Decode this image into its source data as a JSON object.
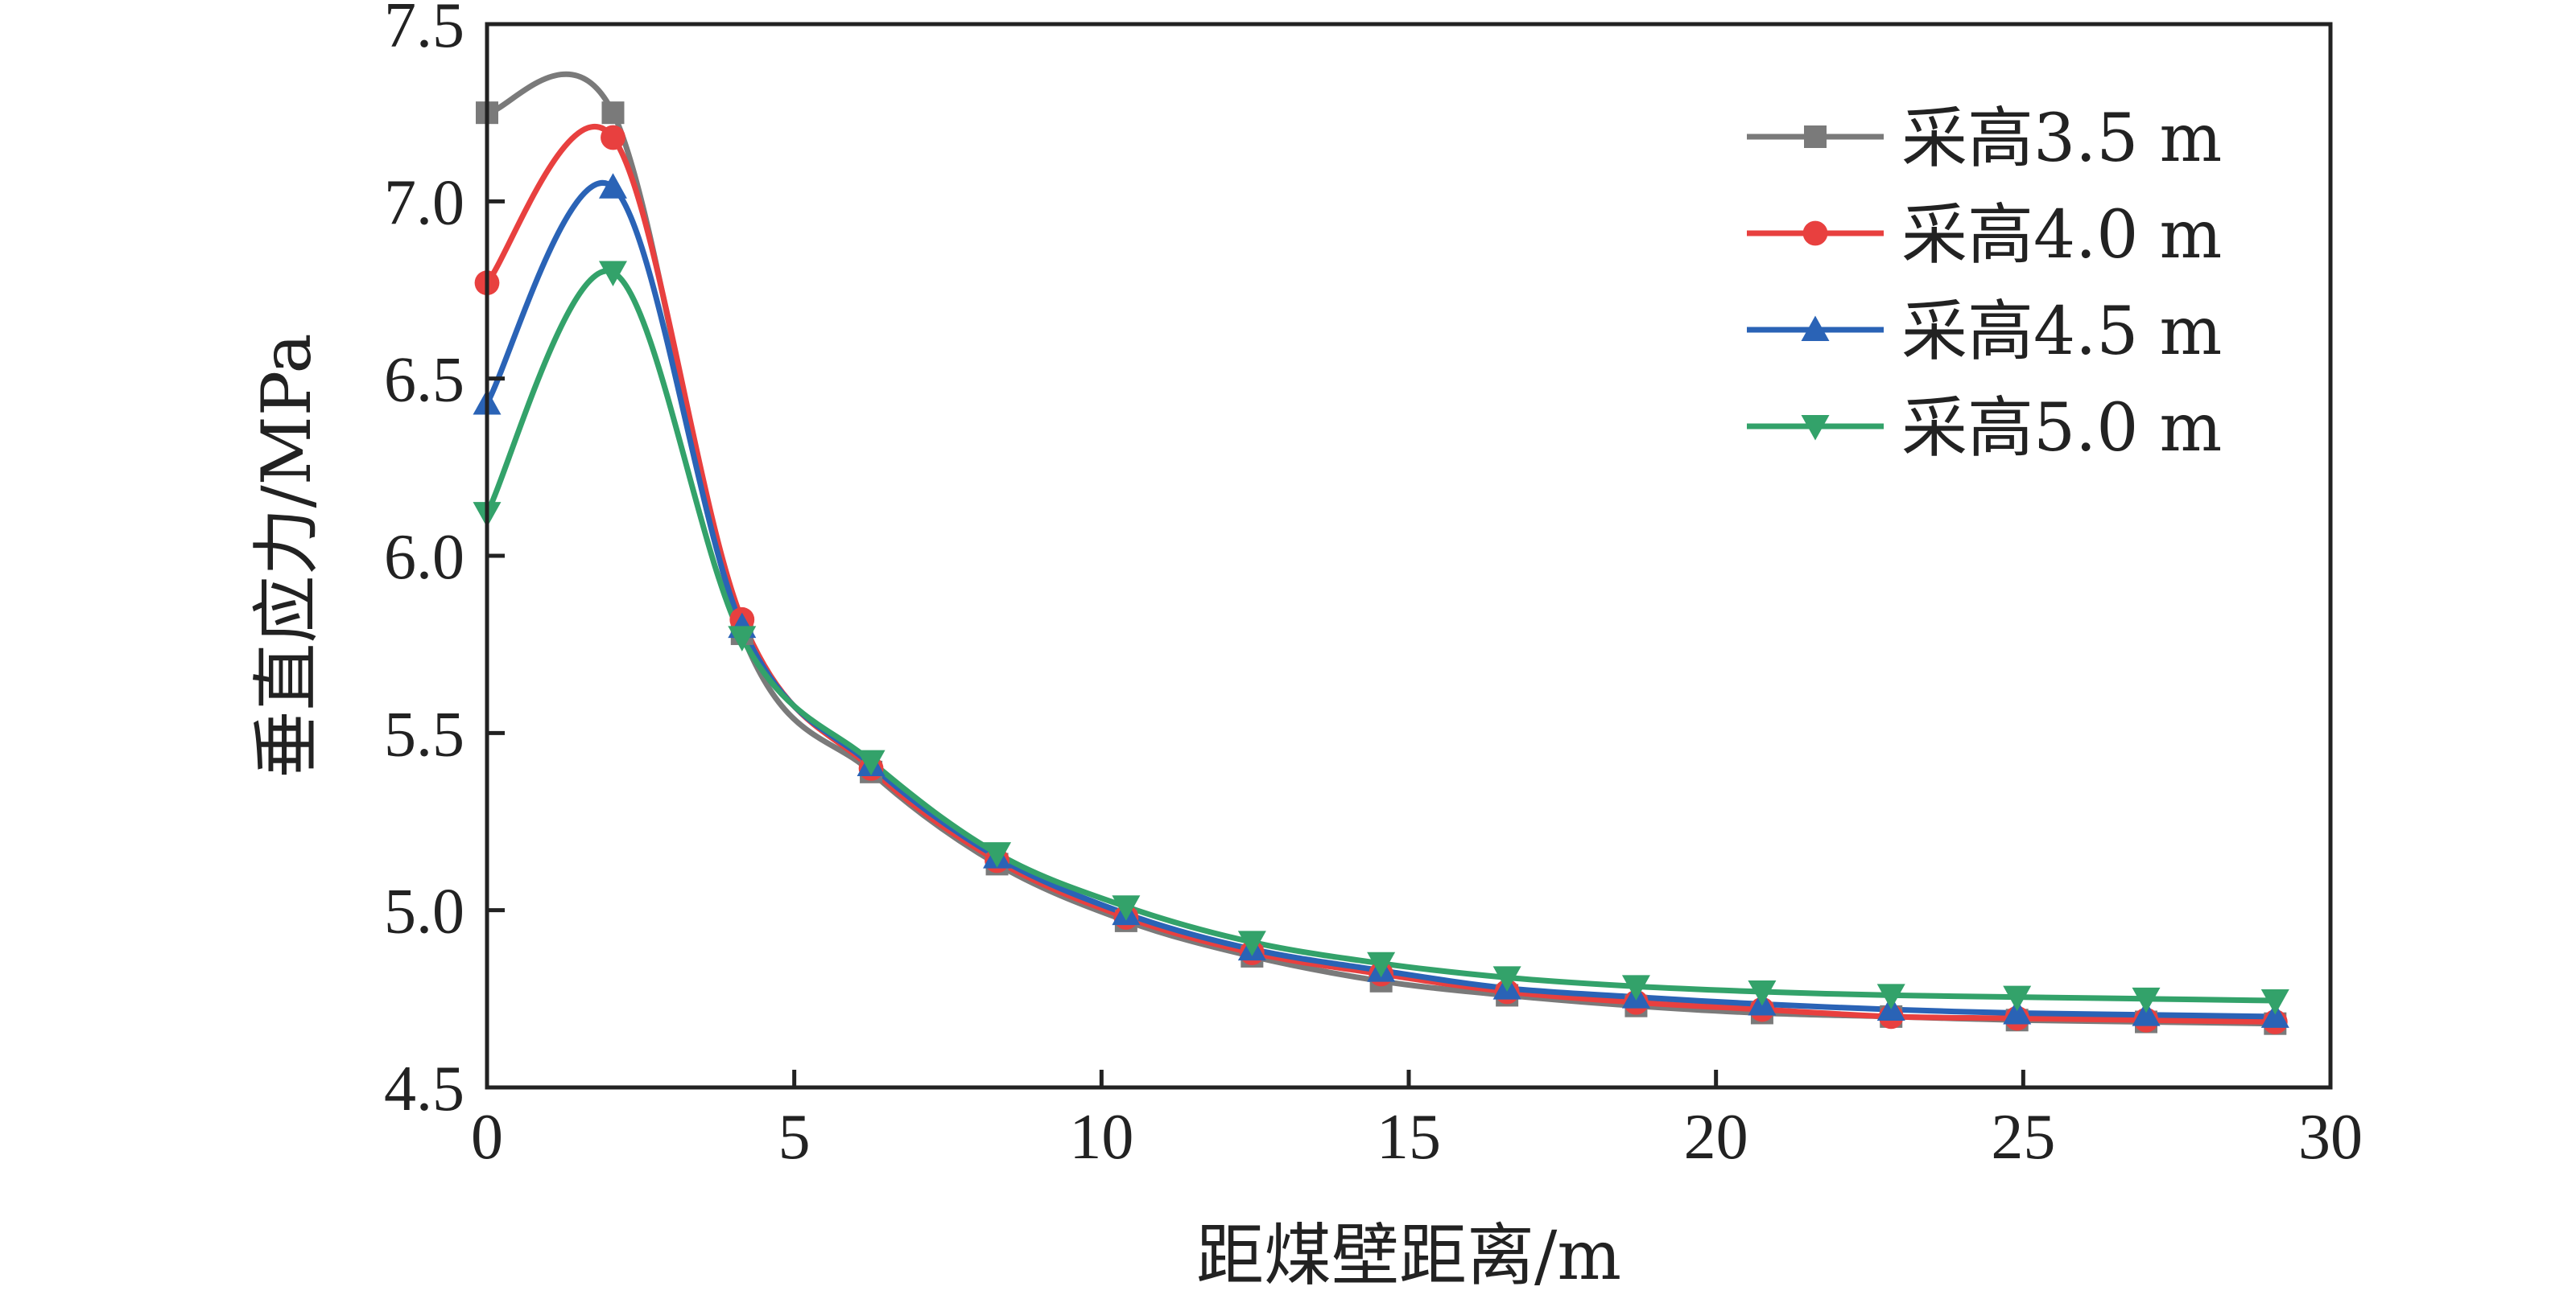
{
  "chart_data": {
    "type": "line",
    "title": "",
    "xlabel": "距煤壁距离/m",
    "ylabel": "垂直应力/MPa",
    "xlim": [
      0,
      30
    ],
    "ylim": [
      4.5,
      7.5
    ],
    "xticks": [
      0,
      5,
      10,
      15,
      20,
      25,
      30
    ],
    "yticks": [
      4.5,
      5.0,
      5.5,
      6.0,
      6.5,
      7.0,
      7.5
    ],
    "xtick_labels": [
      "0",
      "5",
      "10",
      "15",
      "20",
      "25",
      "30"
    ],
    "ytick_labels": [
      "4.5",
      "5.0",
      "5.5",
      "6.0",
      "6.5",
      "7.0",
      "7.5"
    ],
    "grid": false,
    "legend_position": "top-right",
    "x": [
      0,
      2.05,
      4.15,
      6.25,
      8.3,
      10.4,
      12.45,
      14.55,
      16.6,
      18.7,
      20.75,
      22.85,
      24.9,
      27.0,
      29.1
    ],
    "series": [
      {
        "name": "采高3.5 m",
        "color": "#7a7a7a",
        "marker": "square",
        "values": [
          7.25,
          7.25,
          5.78,
          5.39,
          5.13,
          4.97,
          4.87,
          4.8,
          4.76,
          4.73,
          4.71,
          4.7,
          4.69,
          4.685,
          4.68
        ]
      },
      {
        "name": "采高4.0 m",
        "color": "#e8403f",
        "marker": "circle",
        "values": [
          6.77,
          7.18,
          5.82,
          5.4,
          5.14,
          4.98,
          4.88,
          4.82,
          4.77,
          4.74,
          4.72,
          4.7,
          4.695,
          4.69,
          4.685
        ]
      },
      {
        "name": "采高4.5 m",
        "color": "#2a63b6",
        "marker": "triangle-up",
        "values": [
          6.43,
          7.04,
          5.8,
          5.41,
          5.15,
          4.99,
          4.89,
          4.83,
          4.78,
          4.755,
          4.735,
          4.72,
          4.71,
          4.705,
          4.7
        ]
      },
      {
        "name": "采高5.0 m",
        "color": "#33a26a",
        "marker": "triangle-down",
        "values": [
          6.12,
          6.8,
          5.77,
          5.42,
          5.16,
          5.01,
          4.91,
          4.85,
          4.81,
          4.785,
          4.77,
          4.76,
          4.755,
          4.75,
          4.745
        ]
      }
    ]
  }
}
